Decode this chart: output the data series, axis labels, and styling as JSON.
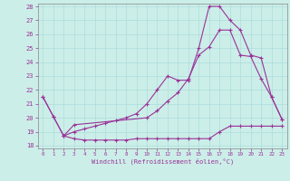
{
  "background_color": "#cceee8",
  "line_color": "#993399",
  "grid_color": "#aadddd",
  "xlim": [
    -0.5,
    23.5
  ],
  "ylim": [
    17.8,
    28.2
  ],
  "yticks": [
    18,
    19,
    20,
    21,
    22,
    23,
    24,
    25,
    26,
    27,
    28
  ],
  "xticks": [
    0,
    1,
    2,
    3,
    4,
    5,
    6,
    7,
    8,
    9,
    10,
    11,
    12,
    13,
    14,
    15,
    16,
    17,
    18,
    19,
    20,
    21,
    22,
    23
  ],
  "xlabel": "Windchill (Refroidissement éolien,°C)",
  "line1_x": [
    0,
    1,
    2,
    3,
    4,
    5,
    6,
    7,
    8,
    9,
    10,
    11,
    12,
    13,
    14,
    15,
    16,
    17,
    18,
    19,
    20,
    21,
    22,
    23
  ],
  "line1_y": [
    21.5,
    20.1,
    18.7,
    18.5,
    18.4,
    18.4,
    18.4,
    18.4,
    18.4,
    18.5,
    18.5,
    18.5,
    18.5,
    18.5,
    18.5,
    18.5,
    18.5,
    19.0,
    19.4,
    19.4,
    19.4,
    19.4,
    19.4,
    19.4
  ],
  "line2_x": [
    0,
    1,
    2,
    3,
    4,
    5,
    6,
    7,
    8,
    9,
    10,
    11,
    12,
    13,
    14,
    15,
    16,
    17,
    18,
    19,
    20,
    21,
    22,
    23
  ],
  "line2_y": [
    21.5,
    20.1,
    18.7,
    19.0,
    19.2,
    19.4,
    19.6,
    19.8,
    20.0,
    20.3,
    21.0,
    22.0,
    23.0,
    22.7,
    22.7,
    25.0,
    28.0,
    28.0,
    27.0,
    26.3,
    24.5,
    24.3,
    21.5,
    19.9
  ],
  "line3_x": [
    2,
    3,
    10,
    11,
    12,
    13,
    14,
    15,
    16,
    17,
    18,
    19,
    20,
    21,
    22,
    23
  ],
  "line3_y": [
    18.7,
    19.5,
    20.0,
    20.5,
    21.2,
    21.8,
    22.8,
    24.5,
    25.1,
    26.3,
    26.3,
    24.5,
    24.4,
    22.8,
    21.5,
    19.9
  ]
}
